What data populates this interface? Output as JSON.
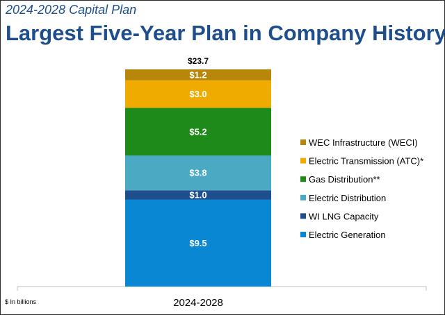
{
  "header": {
    "subtitle": "2024-2028 Capital Plan",
    "title": "Largest Five-Year Plan in Company History"
  },
  "footnote": "$ In billions",
  "chart_data": {
    "type": "bar",
    "stacked": true,
    "categories": [
      "2024-2028"
    ],
    "total_label": "$23.7",
    "total": 23.7,
    "ylim": [
      0,
      23.7
    ],
    "grid": false,
    "legend_position": "right",
    "series": [
      {
        "name": "Electric Generation",
        "values": [
          9.5
        ],
        "label": "$9.5",
        "color": "#0a87d2"
      },
      {
        "name": "WI LNG Capacity",
        "values": [
          1.0
        ],
        "label": "$1.0",
        "color": "#1f4e8c"
      },
      {
        "name": "Electric Distribution",
        "values": [
          3.8
        ],
        "label": "$3.8",
        "color": "#4aaac4"
      },
      {
        "name": "Gas Distribution**",
        "values": [
          5.2
        ],
        "label": "$5.2",
        "color": "#1e8a1a"
      },
      {
        "name": "Electric Transmission (ATC)*",
        "values": [
          3.0
        ],
        "label": "$3.0",
        "color": "#f0ab00"
      },
      {
        "name": "WEC Infrastructure (WECI)",
        "values": [
          1.2
        ],
        "label": "$1.2",
        "color": "#b8860b"
      }
    ]
  }
}
